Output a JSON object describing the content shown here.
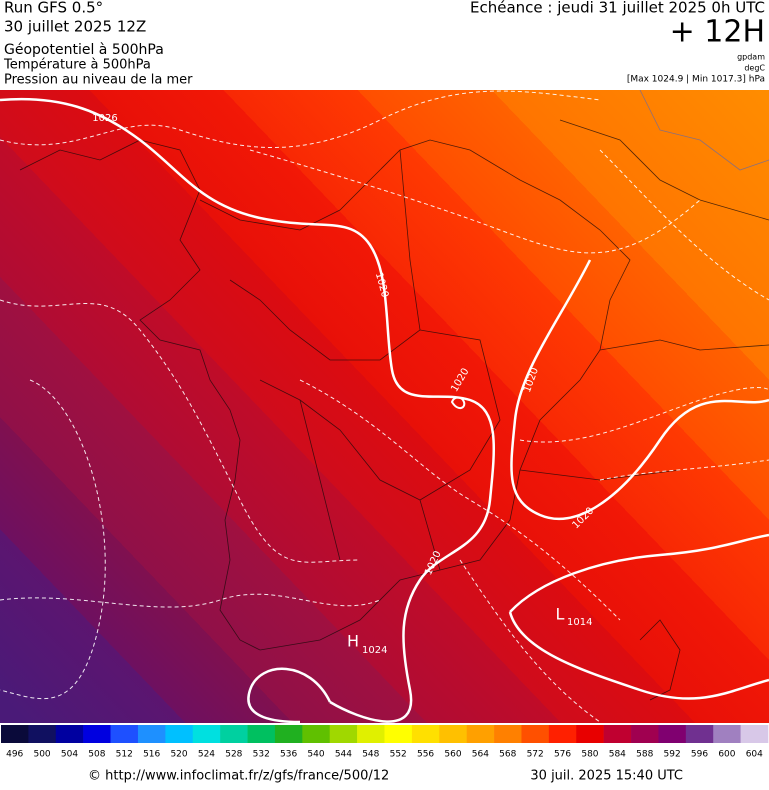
{
  "header": {
    "run": "Run GFS 0.5°",
    "run_date": "30 juillet 2025 12Z",
    "field_1": "Géopotentiel à 500hPa",
    "field_2": "Température à 500hPa",
    "field_3": "Pression au niveau de la mer",
    "valid_time": "Echéance : jeudi 31 juillet 2025 0h UTC",
    "lead_time": "+ 12H",
    "unit_1": "gpdam",
    "unit_2": "degC",
    "pressure_range": "[Max 1024.9 | Min 1017.3] hPa"
  },
  "map_labels": [
    "1026",
    "1020",
    "1020",
    "1020",
    "1020",
    "1020",
    "H",
    "1024",
    "L",
    "1014"
  ],
  "colorbar": {
    "ticks": [
      496,
      500,
      504,
      508,
      512,
      516,
      520,
      524,
      528,
      532,
      536,
      540,
      544,
      548,
      552,
      556,
      560,
      564,
      568,
      572,
      576,
      580,
      584,
      588,
      592,
      596,
      600,
      604
    ],
    "colors": [
      "#0a0a3a",
      "#101060",
      "#0000a0",
      "#0000e0",
      "#1e50ff",
      "#1e90ff",
      "#00c0ff",
      "#00e0e0",
      "#00d0a0",
      "#00c060",
      "#20b020",
      "#60c000",
      "#a0d800",
      "#e0f000",
      "#ffff00",
      "#ffe000",
      "#ffc000",
      "#ffa000",
      "#ff8000",
      "#ff5000",
      "#ff2000",
      "#e80000",
      "#c00030",
      "#a00050",
      "#800070",
      "#703090",
      "#a080c0",
      "#d8c8e8"
    ]
  },
  "footer": {
    "url": "© http://www.infoclimat.fr/z/gfs/france/500/12",
    "generated": "30 juil. 2025 15:40 UTC"
  }
}
